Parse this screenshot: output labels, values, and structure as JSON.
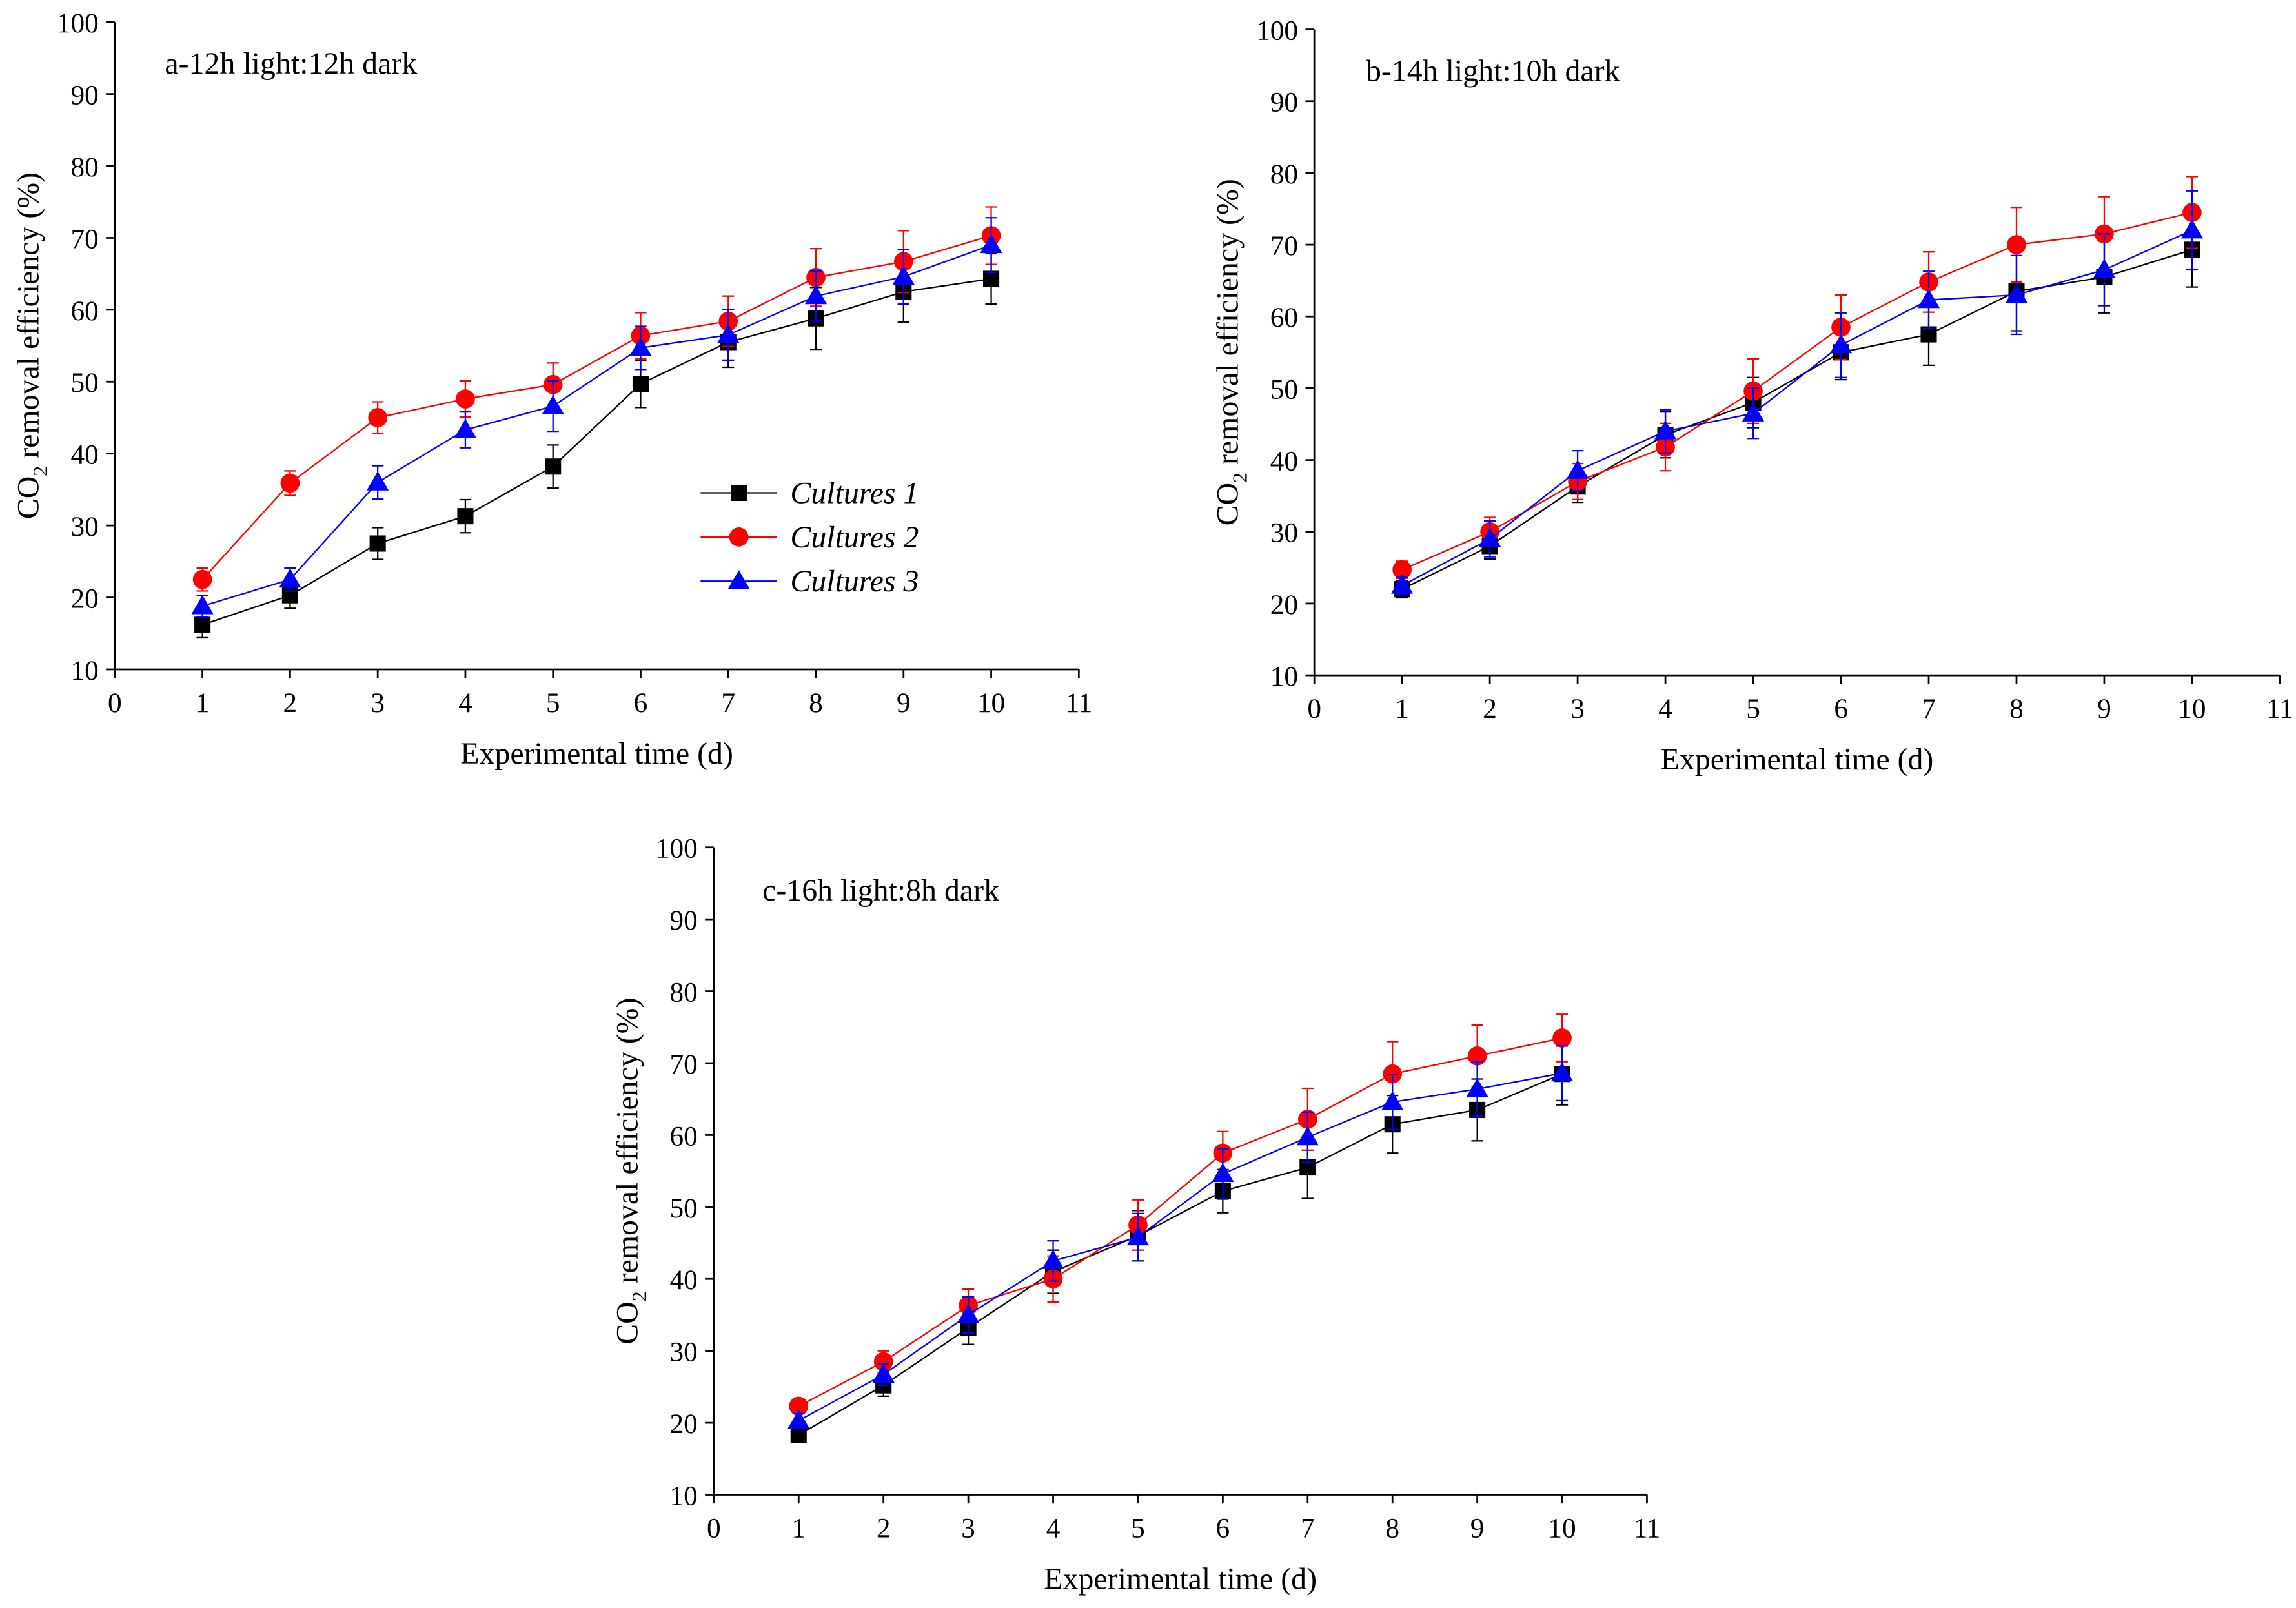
{
  "chart_data": [
    {
      "type": "line",
      "title": "a-12h light:12h dark",
      "xlabel": "Experimental time (d)",
      "ylabel_main": "CO",
      "ylabel_sub": "2",
      "ylabel_rest": " removal efficiency (%)",
      "xlim": [
        0,
        11
      ],
      "ylim": [
        10,
        100
      ],
      "xticks": [
        "0",
        "1",
        "2",
        "3",
        "4",
        "5",
        "6",
        "7",
        "8",
        "9",
        "10",
        "11"
      ],
      "yticks": [
        "10",
        "20",
        "30",
        "40",
        "50",
        "60",
        "70",
        "80",
        "90",
        "100"
      ],
      "grid": false,
      "legend": "center-right",
      "x": [
        1,
        2,
        3,
        4,
        5,
        6,
        7,
        8,
        9,
        10
      ],
      "series": [
        {
          "name": "Cultures 1",
          "color": "#000000",
          "marker": "square",
          "values": [
            16.2,
            20.3,
            27.5,
            31.3,
            38.2,
            49.7,
            55.5,
            58.8,
            62.5,
            64.3
          ],
          "errors": [
            1.8,
            1.8,
            2.2,
            2.3,
            3.0,
            3.3,
            3.5,
            4.3,
            4.2,
            3.5
          ]
        },
        {
          "name": "Cultures 2",
          "color": "#ff0000",
          "marker": "circle",
          "values": [
            22.5,
            35.9,
            45.0,
            47.6,
            49.6,
            56.4,
            58.4,
            64.5,
            66.7,
            70.3
          ],
          "errors": [
            1.6,
            1.7,
            2.2,
            2.5,
            3.0,
            3.2,
            3.5,
            4.0,
            4.3,
            4.0
          ]
        },
        {
          "name": "Cultures 3",
          "color": "#0000ff",
          "marker": "triangle",
          "values": [
            18.8,
            22.5,
            36.0,
            43.3,
            46.6,
            54.7,
            56.5,
            61.9,
            64.6,
            69.0
          ],
          "errors": [
            1.5,
            1.6,
            2.3,
            2.5,
            3.5,
            3.0,
            3.5,
            3.5,
            3.8,
            3.8
          ]
        }
      ]
    },
    {
      "type": "line",
      "title": "b-14h light:10h dark",
      "xlabel": "Experimental time (d)",
      "ylabel_main": "CO",
      "ylabel_sub": "2",
      "ylabel_rest": " removal efficiency (%)",
      "xlim": [
        0,
        11
      ],
      "ylim": [
        10,
        100
      ],
      "xticks": [
        "0",
        "1",
        "2",
        "3",
        "4",
        "5",
        "6",
        "7",
        "8",
        "9",
        "10",
        "11"
      ],
      "yticks": [
        "10",
        "20",
        "30",
        "40",
        "50",
        "60",
        "70",
        "80",
        "90",
        "100"
      ],
      "grid": false,
      "legend": "none",
      "x": [
        1,
        2,
        3,
        4,
        5,
        6,
        7,
        8,
        9,
        10
      ],
      "series": [
        {
          "name": "Cultures 1",
          "color": "#000000",
          "marker": "square",
          "values": [
            22.0,
            28.0,
            36.3,
            43.5,
            48.0,
            55.0,
            57.5,
            63.5,
            65.5,
            69.3
          ],
          "errors": [
            1.2,
            1.8,
            2.2,
            3.2,
            3.5,
            3.8,
            4.3,
            5.5,
            5.0,
            5.2
          ]
        },
        {
          "name": "Cultures 2",
          "color": "#ff0000",
          "marker": "circle",
          "values": [
            24.7,
            30.0,
            37.0,
            41.8,
            49.6,
            58.5,
            64.8,
            70.0,
            71.5,
            74.5
          ],
          "errors": [
            1.2,
            2.0,
            2.5,
            3.3,
            4.5,
            4.5,
            4.2,
            5.2,
            5.2,
            5.0
          ]
        },
        {
          "name": "Cultures 3",
          "color": "#0000ff",
          "marker": "triangle",
          "values": [
            22.5,
            29.0,
            38.5,
            44.0,
            46.5,
            56.0,
            62.3,
            63.0,
            66.5,
            72.0
          ],
          "errors": [
            1.2,
            2.5,
            2.8,
            3.0,
            3.5,
            4.5,
            4.0,
            5.5,
            5.0,
            5.5
          ]
        }
      ]
    },
    {
      "type": "line",
      "title": "c-16h light:8h dark",
      "xlabel": "Experimental time (d)",
      "ylabel_main": "CO",
      "ylabel_sub": "2",
      "ylabel_rest": " removal efficiency (%)",
      "xlim": [
        0,
        11
      ],
      "ylim": [
        10,
        100
      ],
      "xticks": [
        "0",
        "1",
        "2",
        "3",
        "4",
        "5",
        "6",
        "7",
        "8",
        "9",
        "10",
        "11"
      ],
      "yticks": [
        "10",
        "20",
        "30",
        "40",
        "50",
        "60",
        "70",
        "80",
        "90",
        "100"
      ],
      "grid": false,
      "legend": "none",
      "x": [
        1,
        2,
        3,
        4,
        5,
        6,
        7,
        8,
        9,
        10
      ],
      "series": [
        {
          "name": "Cultures 1",
          "color": "#000000",
          "marker": "square",
          "values": [
            18.3,
            25.2,
            33.2,
            41.0,
            46.0,
            52.2,
            55.5,
            61.5,
            63.5,
            68.5
          ],
          "errors": [
            1.0,
            1.5,
            2.3,
            3.0,
            3.5,
            3.0,
            4.3,
            4.0,
            4.3,
            4.3
          ]
        },
        {
          "name": "Cultures 2",
          "color": "#ff0000",
          "marker": "circle",
          "values": [
            22.3,
            28.5,
            36.3,
            40.0,
            47.5,
            57.5,
            62.2,
            68.5,
            71.0,
            73.5
          ],
          "errors": [
            1.0,
            1.5,
            2.3,
            3.2,
            3.5,
            3.0,
            4.3,
            4.5,
            4.3,
            3.3
          ]
        },
        {
          "name": "Cultures 3",
          "color": "#0000ff",
          "marker": "triangle",
          "values": [
            20.3,
            26.7,
            35.0,
            42.5,
            45.8,
            54.6,
            59.7,
            64.6,
            66.4,
            68.6
          ],
          "errors": [
            1.0,
            1.5,
            2.5,
            2.8,
            3.3,
            3.5,
            3.5,
            3.8,
            3.8,
            3.8
          ]
        }
      ]
    }
  ]
}
